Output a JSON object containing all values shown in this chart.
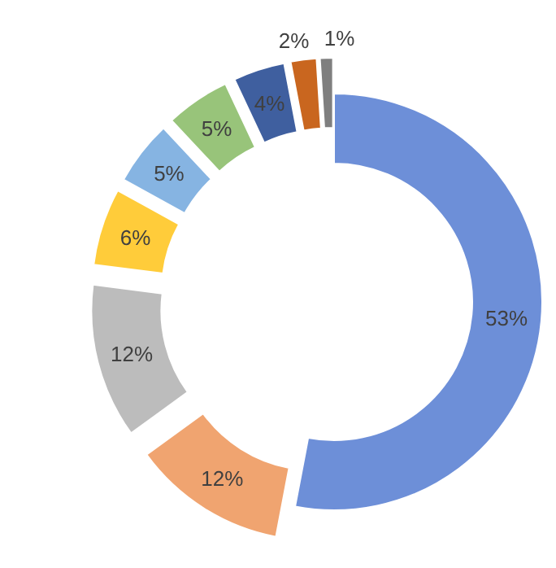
{
  "chart_data": {
    "type": "donut",
    "categories": [
      null,
      null,
      null,
      null,
      null,
      null,
      null,
      null,
      null
    ],
    "values": [
      53,
      12,
      12,
      6,
      5,
      5,
      4,
      2,
      1
    ],
    "colors": [
      "#6d8fd8",
      "#f0a470",
      "#bcbcbc",
      "#ffcc3a",
      "#86b4e2",
      "#98c47a",
      "#3f5f9f",
      "#c9661f",
      "#7f7f7f"
    ],
    "value_labels": [
      "53%",
      "12%",
      "12%",
      "6%",
      "5%",
      "5%",
      "4%",
      "2%",
      "1%"
    ]
  }
}
